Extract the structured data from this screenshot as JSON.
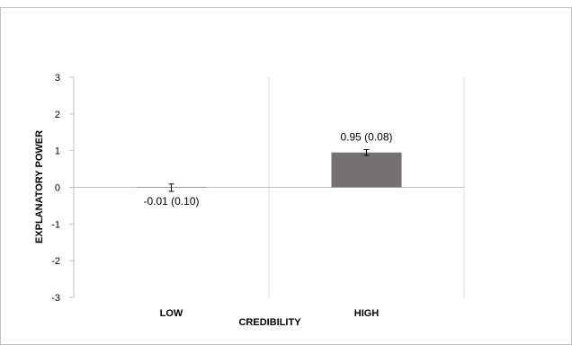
{
  "chart_data": {
    "type": "bar",
    "title": "",
    "xlabel": "CREDIBILITY",
    "ylabel": "EXPLANATORY POWER",
    "categories": [
      "LOW",
      "HIGH"
    ],
    "values": [
      -0.01,
      0.95
    ],
    "errors": [
      0.1,
      0.08
    ],
    "data_labels": [
      "-0.01 (0.10)",
      "0.95 (0.08)"
    ],
    "ylim": [
      -3,
      3
    ],
    "yticks": [
      "-3",
      "-2",
      "-1",
      "0",
      "1",
      "2",
      "3"
    ],
    "grid": "vertical category separators",
    "legend": "none",
    "bar_color": "#767171"
  }
}
